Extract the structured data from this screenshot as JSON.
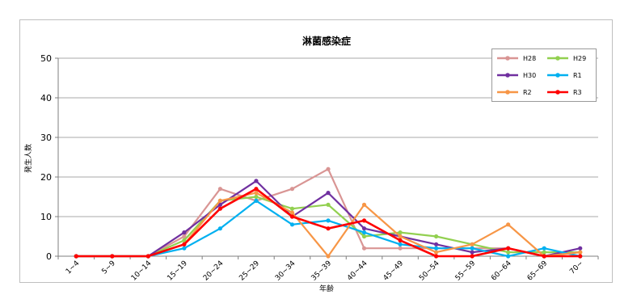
{
  "chart_data": {
    "type": "line",
    "title": "淋菌感染症",
    "xlabel": "年齢",
    "ylabel": "発生人数",
    "ylim": [
      0,
      50
    ],
    "yticks": [
      0,
      10,
      20,
      30,
      40,
      50
    ],
    "grid": true,
    "legend_position": "top-right",
    "categories": [
      "1~4",
      "5~9",
      "10~14",
      "15~19",
      "20~24",
      "25~29",
      "30~34",
      "35~39",
      "40~44",
      "45~49",
      "50~54",
      "55~59",
      "60~64",
      "65~69",
      "70~"
    ],
    "series": [
      {
        "name": "H28",
        "color": "#d99594",
        "values": [
          0,
          0,
          0,
          5,
          17,
          14,
          17,
          22,
          2,
          2,
          2,
          2,
          2,
          0,
          0
        ]
      },
      {
        "name": "H29",
        "color": "#92d050",
        "values": [
          0,
          0,
          0,
          4,
          14,
          15,
          12,
          13,
          5,
          6,
          5,
          3,
          1,
          1,
          1
        ]
      },
      {
        "name": "H30",
        "color": "#7030a0",
        "values": [
          0,
          0,
          0,
          6,
          13,
          19,
          10,
          16,
          7,
          5,
          3,
          1,
          2,
          0,
          2
        ]
      },
      {
        "name": "R1",
        "color": "#00b0f0",
        "values": [
          0,
          0,
          0,
          2,
          7,
          14,
          8,
          9,
          6,
          3,
          2,
          2,
          0,
          2,
          0
        ]
      },
      {
        "name": "R2",
        "color": "#f79646",
        "values": [
          0,
          0,
          0,
          3,
          14,
          16,
          11,
          0,
          13,
          5,
          1,
          3,
          8,
          0,
          1
        ]
      },
      {
        "name": "R3",
        "color": "#ff0000",
        "values": [
          0,
          0,
          0,
          3,
          12,
          17,
          10,
          7,
          9,
          4,
          0,
          0,
          2,
          0,
          0
        ]
      }
    ]
  }
}
